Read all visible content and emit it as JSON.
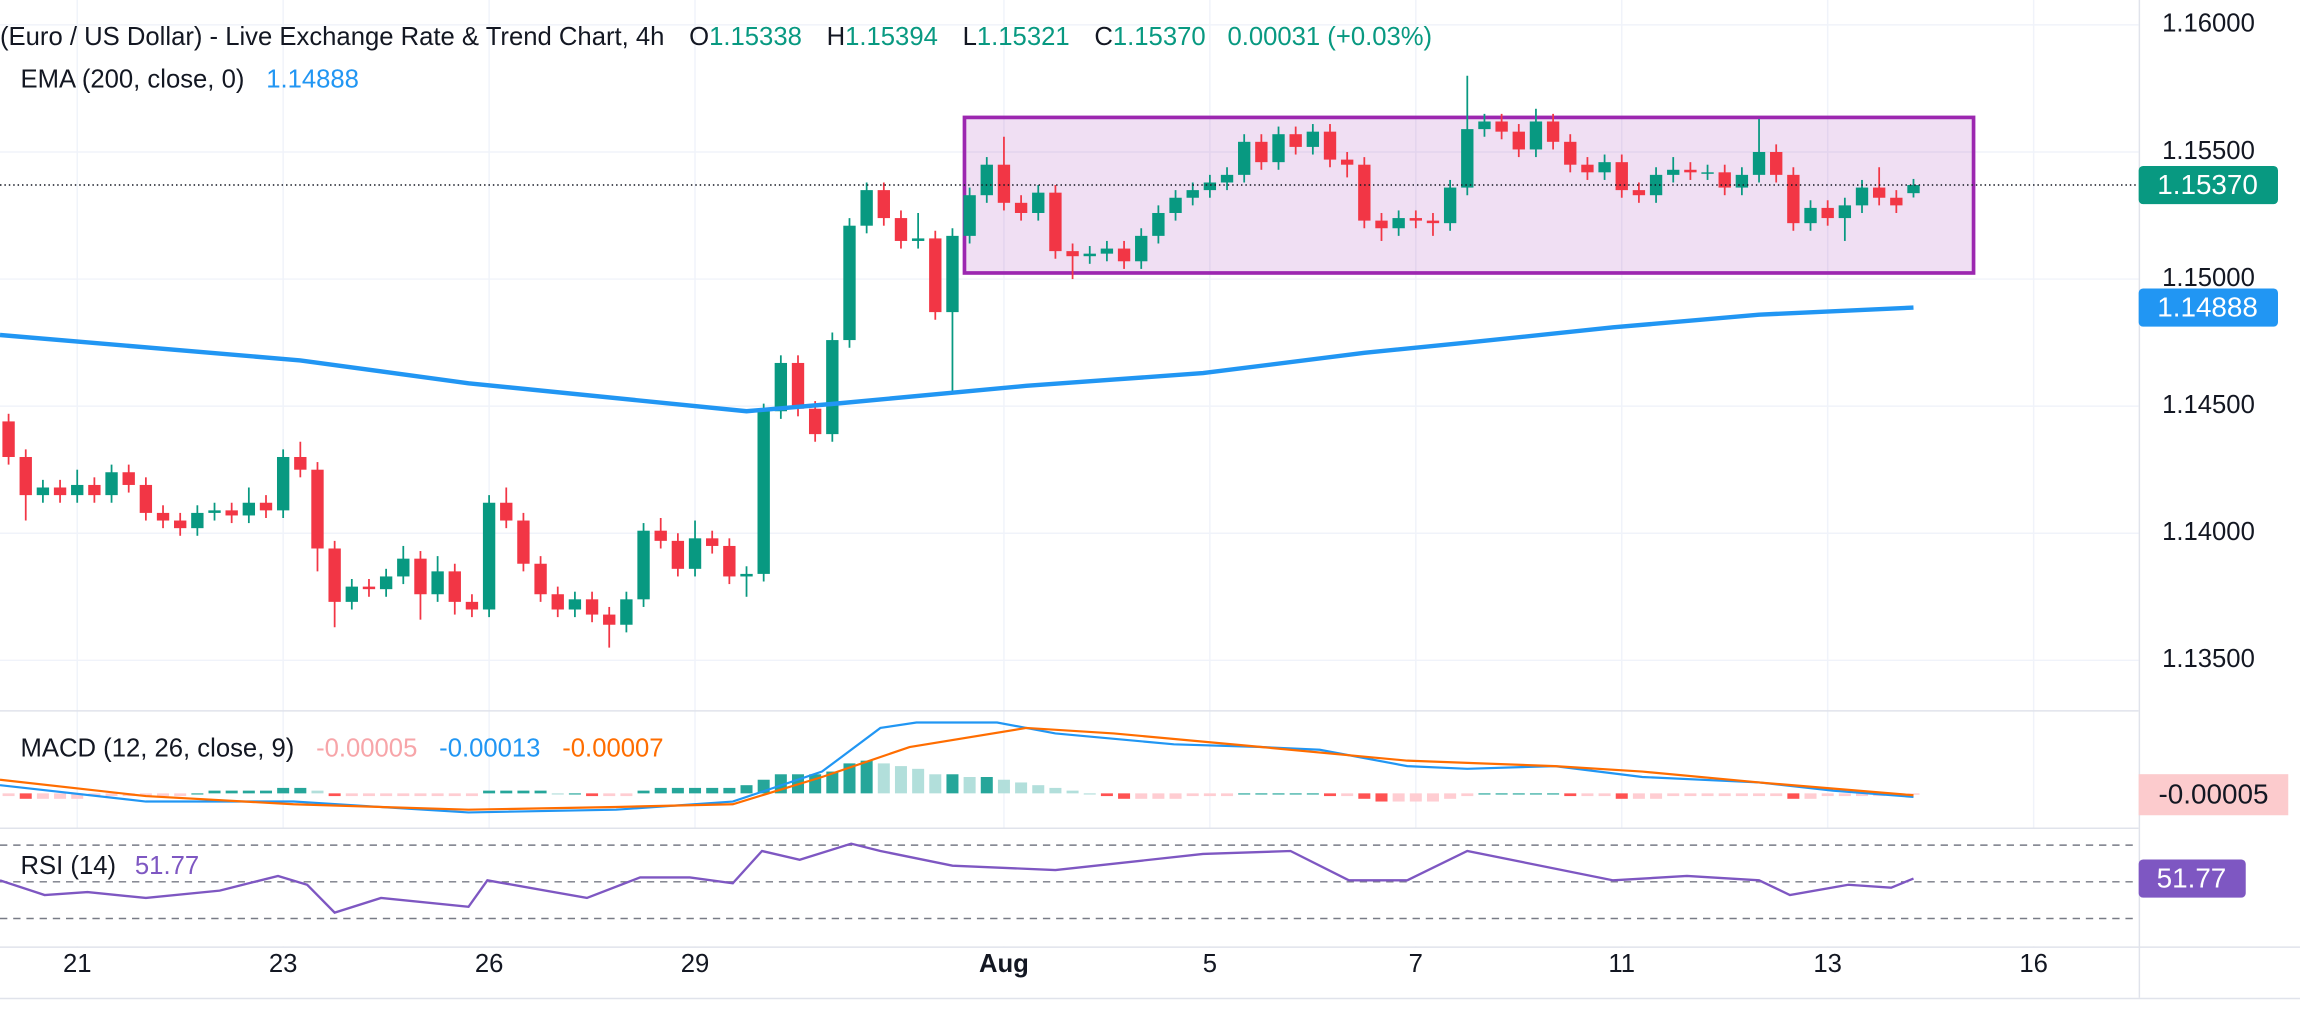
{
  "header": {
    "title": "(Euro / US Dollar) - Live Exchange Rate & Trend Chart, 4h",
    "ohlc": [
      {
        "key": "O",
        "value": "1.15338"
      },
      {
        "key": "H",
        "value": "1.15394"
      },
      {
        "key": "L",
        "value": "1.15321"
      },
      {
        "key": "C",
        "value": "1.15370"
      }
    ],
    "change": "0.00031 (+0.03%)"
  },
  "chart_data": [
    {
      "type": "candlestick",
      "up_color": "#089981",
      "down_color": "#f23645",
      "xlim": [
        -0.5,
        124.12
      ],
      "ylim": [
        1.13304,
        1.16098
      ],
      "grid": true,
      "yticks": [
        {
          "value": 1.135,
          "label": "1.13500"
        },
        {
          "value": 1.14,
          "label": "1.14000"
        },
        {
          "value": 1.145,
          "label": "1.14500"
        },
        {
          "value": 1.15,
          "label": "1.15000"
        },
        {
          "value": 1.155,
          "label": "1.15500"
        },
        {
          "value": 1.16,
          "label": "1.16000"
        }
      ],
      "xticks": [
        {
          "value": 4,
          "label": "21"
        },
        {
          "value": 16,
          "label": "23"
        },
        {
          "value": 28,
          "label": "26"
        },
        {
          "value": 40,
          "label": "29"
        },
        {
          "value": 58,
          "label": "Aug"
        },
        {
          "value": 70,
          "label": "5"
        },
        {
          "value": 82,
          "label": "7"
        },
        {
          "value": 94,
          "label": "11"
        },
        {
          "value": 106,
          "label": "13"
        },
        {
          "value": 118,
          "label": "16"
        }
      ],
      "open": [
        1.1444,
        1.143,
        1.1415,
        1.1418,
        1.1415,
        1.1419,
        1.1415,
        1.1424,
        1.1419,
        1.1408,
        1.1405,
        1.1402,
        1.1408,
        1.1409,
        1.1407,
        1.1412,
        1.1409,
        1.143,
        1.1425,
        1.1394,
        1.1373,
        1.1379,
        1.1378,
        1.1383,
        1.139,
        1.1376,
        1.1385,
        1.1373,
        1.137,
        1.1412,
        1.1405,
        1.1388,
        1.1376,
        1.137,
        1.1374,
        1.1368,
        1.1364,
        1.1374,
        1.1401,
        1.1397,
        1.1386,
        1.1398,
        1.1395,
        1.1383,
        1.1384,
        1.1448,
        1.1467,
        1.1449,
        1.1439,
        1.1476,
        1.1521,
        1.1535,
        1.1524,
        1.1515,
        1.1516,
        1.1487,
        1.1517,
        1.1533,
        1.1545,
        1.153,
        1.1526,
        1.1534,
        1.1511,
        1.1509,
        1.151,
        1.1512,
        1.1507,
        1.1517,
        1.1526,
        1.1532,
        1.1535,
        1.1538,
        1.1541,
        1.1554,
        1.1546,
        1.1557,
        1.1552,
        1.1558,
        1.1547,
        1.1545,
        1.1523,
        1.152,
        1.1524,
        1.1523,
        1.1522,
        1.1536,
        1.1559,
        1.1562,
        1.1558,
        1.1551,
        1.1562,
        1.1554,
        1.1545,
        1.1542,
        1.1546,
        1.1535,
        1.1533,
        1.1541,
        1.1543,
        1.1542,
        1.1542,
        1.1536,
        1.1541,
        1.155,
        1.1541,
        1.1522,
        1.1528,
        1.1524,
        1.1529,
        1.1536,
        1.1532,
        1.15338
      ],
      "high": [
        1.1447,
        1.1433,
        1.1421,
        1.1421,
        1.1425,
        1.1422,
        1.1427,
        1.1427,
        1.1422,
        1.1411,
        1.1408,
        1.1411,
        1.1412,
        1.1412,
        1.1418,
        1.1415,
        1.1433,
        1.1436,
        1.1428,
        1.1397,
        1.1382,
        1.1382,
        1.1386,
        1.1395,
        1.1393,
        1.1391,
        1.1388,
        1.1376,
        1.1415,
        1.1418,
        1.1408,
        1.1391,
        1.1379,
        1.1377,
        1.1377,
        1.1371,
        1.1377,
        1.1404,
        1.1406,
        1.14,
        1.1405,
        1.1401,
        1.1398,
        1.1387,
        1.1451,
        1.147,
        1.147,
        1.1452,
        1.1479,
        1.1524,
        1.1538,
        1.1538,
        1.1527,
        1.1526,
        1.1519,
        1.152,
        1.1536,
        1.1548,
        1.1556,
        1.1533,
        1.1537,
        1.1537,
        1.1514,
        1.1513,
        1.1515,
        1.1515,
        1.152,
        1.1529,
        1.1535,
        1.1538,
        1.1541,
        1.1544,
        1.1557,
        1.1557,
        1.156,
        1.156,
        1.1561,
        1.1561,
        1.155,
        1.1548,
        1.1526,
        1.1527,
        1.1527,
        1.1526,
        1.1539,
        1.158,
        1.1565,
        1.1565,
        1.1561,
        1.1567,
        1.1565,
        1.1557,
        1.1548,
        1.1549,
        1.1549,
        1.1538,
        1.1544,
        1.1548,
        1.1546,
        1.1545,
        1.1545,
        1.1544,
        1.1563,
        1.1553,
        1.1544,
        1.1531,
        1.1531,
        1.1532,
        1.1539,
        1.1544,
        1.1535,
        1.15394
      ],
      "low": [
        1.1427,
        1.1405,
        1.1412,
        1.1412,
        1.1412,
        1.1412,
        1.1412,
        1.1416,
        1.1405,
        1.1402,
        1.1399,
        1.1399,
        1.1405,
        1.1404,
        1.1404,
        1.1406,
        1.1406,
        1.1422,
        1.1385,
        1.1363,
        1.137,
        1.1375,
        1.1375,
        1.138,
        1.1366,
        1.1373,
        1.1368,
        1.1367,
        1.1367,
        1.1402,
        1.1385,
        1.1373,
        1.1367,
        1.1367,
        1.1365,
        1.1355,
        1.1361,
        1.1371,
        1.1394,
        1.1383,
        1.1383,
        1.1392,
        1.138,
        1.1375,
        1.1381,
        1.1445,
        1.1446,
        1.1436,
        1.1436,
        1.1473,
        1.1518,
        1.1521,
        1.1512,
        1.1512,
        1.1484,
        1.1455,
        1.1514,
        1.153,
        1.1527,
        1.1523,
        1.1523,
        1.1508,
        1.15,
        1.1506,
        1.1507,
        1.1504,
        1.1504,
        1.1514,
        1.1523,
        1.1529,
        1.1532,
        1.1535,
        1.1538,
        1.1543,
        1.1543,
        1.1549,
        1.1549,
        1.1544,
        1.154,
        1.152,
        1.1515,
        1.1517,
        1.152,
        1.1517,
        1.1519,
        1.1533,
        1.1556,
        1.1555,
        1.1548,
        1.1548,
        1.1551,
        1.1542,
        1.1539,
        1.1539,
        1.1532,
        1.153,
        1.153,
        1.1538,
        1.1539,
        1.1539,
        1.1533,
        1.1533,
        1.1538,
        1.1538,
        1.1519,
        1.1519,
        1.1521,
        1.1515,
        1.1526,
        1.1529,
        1.1526,
        1.15321
      ],
      "close": [
        1.143,
        1.1415,
        1.1418,
        1.1415,
        1.1419,
        1.1415,
        1.1424,
        1.1419,
        1.1408,
        1.1405,
        1.1402,
        1.1408,
        1.1409,
        1.1407,
        1.1412,
        1.1409,
        1.143,
        1.1425,
        1.1394,
        1.1373,
        1.1379,
        1.1378,
        1.1383,
        1.139,
        1.1376,
        1.1385,
        1.1373,
        1.137,
        1.1412,
        1.1405,
        1.1388,
        1.1376,
        1.137,
        1.1374,
        1.1368,
        1.1364,
        1.1374,
        1.1401,
        1.1397,
        1.1386,
        1.1398,
        1.1395,
        1.1383,
        1.1384,
        1.1448,
        1.1467,
        1.1449,
        1.1439,
        1.1476,
        1.1521,
        1.1535,
        1.1524,
        1.1515,
        1.1516,
        1.1487,
        1.1517,
        1.1533,
        1.1545,
        1.153,
        1.1526,
        1.1534,
        1.1511,
        1.1509,
        1.151,
        1.1512,
        1.1507,
        1.1517,
        1.1526,
        1.1532,
        1.1535,
        1.1538,
        1.1541,
        1.1554,
        1.1546,
        1.1557,
        1.1552,
        1.1558,
        1.1547,
        1.1545,
        1.1523,
        1.152,
        1.1524,
        1.1523,
        1.1522,
        1.1536,
        1.1559,
        1.1562,
        1.1558,
        1.1551,
        1.1562,
        1.1554,
        1.1545,
        1.1542,
        1.1546,
        1.1535,
        1.1533,
        1.1541,
        1.1543,
        1.1542,
        1.1542,
        1.1536,
        1.1541,
        1.155,
        1.1541,
        1.1522,
        1.1528,
        1.1524,
        1.1529,
        1.1536,
        1.1532,
        1.1529,
        1.1537
      ],
      "last_price": {
        "value": 1.1537,
        "label": "1.15370"
      },
      "ema": {
        "name": "EMA (200, close, 0)",
        "color": "#2196f3",
        "x": [
          -0.5,
          17,
          26.8,
          43,
          48.2,
          59.3,
          69.6,
          79,
          85,
          93.5,
          102,
          111
        ],
        "values": [
          1.1478,
          1.1468,
          1.1459,
          1.1448,
          1.1451,
          1.1458,
          1.1463,
          1.1471,
          1.1475,
          1.1481,
          1.1486,
          1.14888
        ],
        "value_label": "1.14888"
      },
      "range_box": {
        "x": [
          55.7,
          114.5
        ],
        "y": [
          1.15024,
          1.15636
        ],
        "color": "#9c27b0"
      }
    },
    {
      "type": "macd",
      "title": "MACD (12, 26, close, 9)",
      "xlim": [
        -0.5,
        124.12
      ],
      "ylim": [
        -0.0012,
        0.003
      ],
      "histogram": {
        "colors": {
          "up_strong": "#26a69a",
          "up_weak": "#b2dfdb",
          "down_strong": "#ff5252",
          "down_weak": "#ffcdd2"
        },
        "values": [
          -0.0001,
          -0.0002,
          -0.0002,
          -0.0002,
          -0.0002,
          -0.0001,
          -0.0001,
          -0.0001,
          -0.0001,
          -0.0001,
          -0.0001,
          0,
          0.0001,
          0.0001,
          0.0001,
          0.0001,
          0.0002,
          0.0002,
          0.0001,
          -0.0001,
          -0.0001,
          -0.0001,
          -0.0001,
          -0.0001,
          -0.0001,
          -0.0001,
          -0.0001,
          -0.0001,
          0.0001,
          0.0001,
          0.0001,
          0.0001,
          0,
          0,
          -0.0001,
          -0.0001,
          -0.0001,
          0.0001,
          0.0002,
          0.0002,
          0.0002,
          0.0002,
          0.0002,
          0.0003,
          0.0005,
          0.0007,
          0.0007,
          0.0007,
          0.0008,
          0.0011,
          0.0012,
          0.0011,
          0.001,
          0.0009,
          0.0007,
          0.0007,
          0.0006,
          0.0006,
          0.0005,
          0.0004,
          0.0003,
          0.0002,
          0.0001,
          0,
          -0.0001,
          -0.0002,
          -0.0002,
          -0.0002,
          -0.0002,
          -0.0001,
          -0.0001,
          -0.0001,
          0,
          0,
          0,
          0,
          0,
          -0.0001,
          -0.0001,
          -0.0002,
          -0.0003,
          -0.0003,
          -0.0003,
          -0.0003,
          -0.0002,
          -0.0001,
          0,
          0,
          0,
          0,
          0,
          -0.0001,
          -0.0001,
          -0.0001,
          -0.0002,
          -0.0002,
          -0.0002,
          -0.0001,
          -0.0001,
          -0.0001,
          -0.0001,
          -0.0001,
          -0.0001,
          -0.0001,
          -0.0002,
          -0.0002,
          -0.0001,
          -0.0001,
          -0.0001,
          -0.0001,
          -0.0001,
          -5e-05
        ],
        "last_label": "-0.00005",
        "label_color": "#f7a5a9",
        "badge_color": "#fccbcd"
      },
      "series": [
        {
          "name": "MACD",
          "color": "#2196f3",
          "x": [
            -0.5,
            8,
            16.6,
            26.8,
            35.4,
            42.2,
            47.4,
            50.8,
            52.9,
            57.6,
            61,
            67.9,
            73,
            76.4,
            81.5,
            85,
            90.1,
            95.2,
            102,
            106.3,
            111
          ],
          "values": [
            0.0003,
            -0.0003,
            -0.0003,
            -0.0007,
            -0.0006,
            -0.0003,
            0.0008,
            0.0024,
            0.0026,
            0.0026,
            0.0022,
            0.0018,
            0.0017,
            0.0016,
            0.001,
            0.0009,
            0.001,
            0.0006,
            0.0004,
            0.0001,
            -0.00013
          ],
          "last_label": "-0.00013"
        },
        {
          "name": "Signal",
          "color": "#ff6d00",
          "x": [
            -0.5,
            8,
            16.6,
            26.8,
            35.4,
            42.2,
            47.4,
            52.5,
            59.3,
            64.4,
            73,
            81.5,
            90.1,
            95.2,
            102,
            111
          ],
          "values": [
            0.0005,
            -0.0001,
            -0.0004,
            -0.0006,
            -0.0005,
            -0.0004,
            0.0006,
            0.0017,
            0.0024,
            0.0022,
            0.0017,
            0.0012,
            0.001,
            0.0008,
            0.0004,
            -7e-05
          ],
          "last_label": "-0.00007"
        }
      ]
    },
    {
      "type": "rsi",
      "title": "RSI (14)",
      "color": "#7e57c2",
      "xlim": [
        -0.5,
        124.12
      ],
      "ylim": [
        14.8,
        78.8
      ],
      "levels": [
        70,
        50,
        30
      ],
      "x": [
        -0.5,
        2.1,
        4.6,
        8,
        12.3,
        15.7,
        17.4,
        19,
        21.7,
        26.8,
        27.9,
        33.7,
        36.8,
        39.7,
        42.2,
        43.9,
        46.1,
        49.1,
        50.8,
        55,
        61,
        69.6,
        74.7,
        78.1,
        81.5,
        85,
        88.4,
        93.5,
        97.8,
        102,
        103.8,
        107.2,
        109.7,
        111
      ],
      "values": [
        50.8,
        42.8,
        44.4,
        41.2,
        45.2,
        53.2,
        48.4,
        33.2,
        41.2,
        36.4,
        50.8,
        41.2,
        52.4,
        52.4,
        49.2,
        66.8,
        62,
        70.8,
        66.8,
        58.8,
        56.4,
        65.2,
        66.8,
        50.8,
        50.8,
        66.8,
        60.4,
        50.8,
        53.2,
        50.8,
        42.8,
        48.4,
        46.8,
        51.77
      ],
      "last_label": "51.77"
    }
  ]
}
